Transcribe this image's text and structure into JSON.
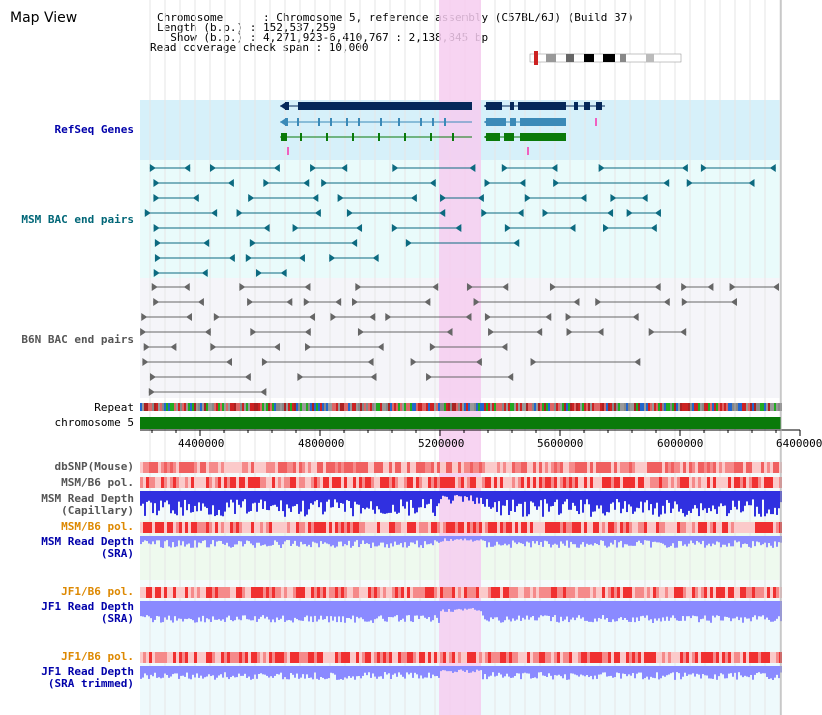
{
  "header": {
    "title": "Map View",
    "chromosome_line": "Chromosome      : Chromosome 5, reference assembly (C57BL/6J) (Build 37)",
    "length_line": "Length (b.p.) : 152,537,259",
    "show_line": "  Show (b.p.) : 4,271,923-6,410,767 : 2,138,845 bp",
    "coverage_line": "Read coverage check span : 10,000"
  },
  "tracks": {
    "refseq": "RefSeq Genes",
    "msm_bac": "MSM BAC end pairs",
    "b6n_bac": "B6N BAC end pairs",
    "repeat": "Repeat",
    "chromosome": "chromosome 5",
    "dbsnp": "dbSNP(Mouse)",
    "msm_b6_pol_1": "MSM/B6 pol.",
    "msm_depth_cap": "MSM Read Depth\n(Capillary)",
    "msm_b6_pol_2": "MSM/B6 pol.",
    "msm_depth_sra": "MSM Read Depth\n(SRA)",
    "jf1_b6_pol_1": "JF1/B6 pol.",
    "jf1_depth_sra": "JF1 Read Depth\n(SRA)",
    "jf1_b6_pol_2": "JF1/B6 pol.",
    "jf1_depth_trim": "JF1 Read Depth\n(SRA trimmed)"
  },
  "axis": {
    "ticks": [
      "4400000",
      "4800000",
      "5200000",
      "5600000",
      "6000000",
      "6400000"
    ]
  },
  "colors": {
    "highlight": "#f6cdf0",
    "refseq_bg": "#d6f0fa",
    "msm_bg": "#e9fbfb",
    "gene_dark": "#06285a",
    "gene_mid": "#3b8ab8",
    "gene_green": "#0a7a0a",
    "chromosome_bar": "#0a7a0a",
    "depth_blue": "#3030e0",
    "depth_light": "#8a8aff",
    "pol_red": "#f03030"
  }
}
